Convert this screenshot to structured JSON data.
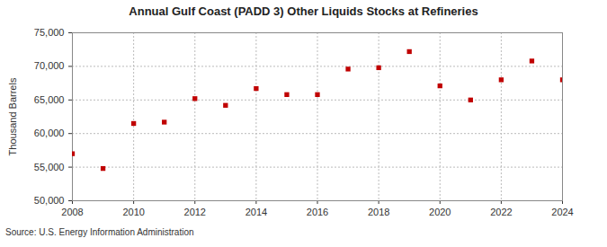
{
  "chart_data": {
    "type": "scatter",
    "title": "Annual Gulf Coast (PADD 3) Other Liquids Stocks at Refineries",
    "y_label": "Thousand Barrels",
    "source": "Source: U.S. Energy Information Administration",
    "x": [
      2008,
      2009,
      2010,
      2011,
      2012,
      2013,
      2014,
      2015,
      2016,
      2017,
      2018,
      2019,
      2020,
      2021,
      2022,
      2023,
      2024
    ],
    "values": [
      57000,
      54800,
      61500,
      61700,
      65200,
      64200,
      66700,
      65800,
      65800,
      69600,
      69800,
      72200,
      67100,
      65000,
      68000,
      70800,
      68000
    ],
    "color": "#c00000",
    "marker": "square",
    "xlim": [
      2008,
      2024
    ],
    "xticks": [
      2008,
      2010,
      2012,
      2014,
      2016,
      2018,
      2020,
      2022,
      2024
    ],
    "ylim": [
      50000,
      75000
    ],
    "yticks": [
      {
        "value": 50000,
        "label": "50,000"
      },
      {
        "value": 55000,
        "label": "55,000"
      },
      {
        "value": 60000,
        "label": "60,000"
      },
      {
        "value": 65000,
        "label": "65,000"
      },
      {
        "value": 70000,
        "label": "70,000"
      },
      {
        "value": 75000,
        "label": "75,000"
      }
    ],
    "grid": true
  }
}
